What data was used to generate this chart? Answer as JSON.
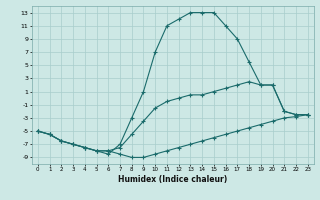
{
  "xlabel": "Humidex (Indice chaleur)",
  "bg_color": "#cde8e5",
  "grid_color": "#a8cecc",
  "line_color": "#1a6b6b",
  "xlim": [
    -0.5,
    23.5
  ],
  "ylim": [
    -10,
    14
  ],
  "xticks": [
    0,
    1,
    2,
    3,
    4,
    5,
    6,
    7,
    8,
    9,
    10,
    11,
    12,
    13,
    14,
    15,
    16,
    17,
    18,
    19,
    20,
    21,
    22,
    23
  ],
  "yticks": [
    -9,
    -7,
    -5,
    -3,
    -1,
    1,
    3,
    5,
    7,
    9,
    11,
    13
  ],
  "line1_x": [
    0,
    1,
    2,
    3,
    4,
    5,
    6,
    7,
    8,
    9,
    10,
    11,
    12,
    13,
    14,
    15,
    16,
    17,
    18,
    19,
    20,
    21,
    22,
    23
  ],
  "line1_y": [
    -5,
    -5.5,
    -6.5,
    -7,
    -7.5,
    -8,
    -8,
    -8.5,
    -9,
    -9,
    -8.5,
    -8,
    -7.5,
    -7,
    -6.5,
    -6,
    -5.5,
    -5,
    -4.5,
    -4,
    -3.5,
    -3,
    -2.8,
    -2.5
  ],
  "line2_x": [
    0,
    1,
    2,
    3,
    4,
    5,
    6,
    7,
    8,
    9,
    10,
    11,
    12,
    13,
    14,
    15,
    16,
    17,
    18,
    19,
    20,
    21,
    22,
    23
  ],
  "line2_y": [
    -5,
    -5.5,
    -6.5,
    -7,
    -7.5,
    -8,
    -8.5,
    -7,
    -3,
    1,
    7,
    11,
    12,
    13,
    13,
    13,
    11,
    9,
    5.5,
    2,
    2,
    -2,
    -2.5,
    -2.5
  ],
  "line3_x": [
    0,
    1,
    2,
    3,
    4,
    5,
    6,
    7,
    8,
    9,
    10,
    11,
    12,
    13,
    14,
    15,
    16,
    17,
    18,
    19,
    20,
    21,
    22,
    23
  ],
  "line3_y": [
    -5,
    -5.5,
    -6.5,
    -7,
    -7.5,
    -8,
    -8.0,
    -7.5,
    -5.5,
    -3.5,
    -1.5,
    -0.5,
    0,
    0.5,
    0.5,
    1,
    1.5,
    2,
    2.5,
    2,
    2,
    -2,
    -2.5,
    -2.5
  ]
}
